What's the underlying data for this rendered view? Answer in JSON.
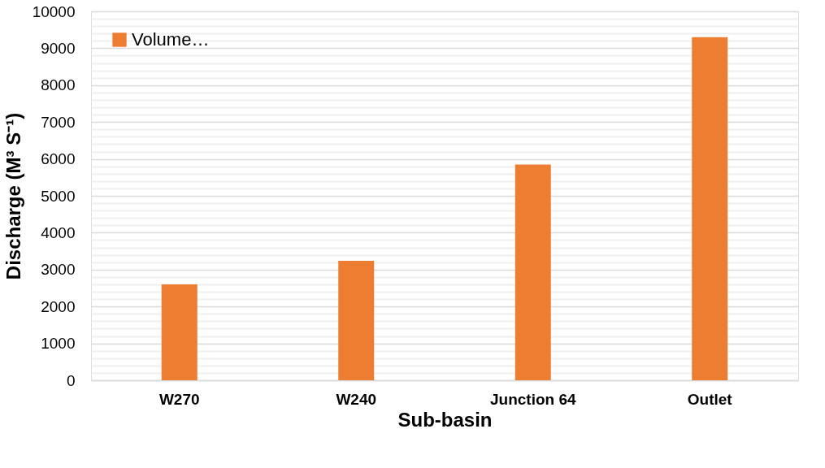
{
  "chart_data": {
    "type": "bar",
    "xlabel": "Sub-basin",
    "ylabel": "Discharge (M³ S⁻¹)",
    "categories": [
      "W270",
      "W240",
      "Junction 64",
      "Outlet"
    ],
    "series": [
      {
        "name": "Volume…",
        "color": "#ed7d31",
        "values": [
          2600,
          3240,
          5850,
          9300
        ]
      }
    ],
    "ylim": [
      0,
      10000
    ],
    "yticks": [
      0,
      {
        "value": 200,
        "label": null
      },
      {
        "value": 400,
        "label": null
      },
      {
        "value": 600,
        "label": null
      },
      {
        "value": 800,
        "label": null
      },
      1000,
      {
        "value": 1200,
        "label": null
      },
      {
        "value": 1400,
        "label": null
      },
      {
        "value": 1600,
        "label": null
      },
      {
        "value": 1800,
        "label": null
      },
      2000,
      {
        "value": 2200,
        "label": null
      },
      {
        "value": 2400,
        "label": null
      },
      {
        "value": 2600,
        "label": null
      },
      {
        "value": 2800,
        "label": null
      },
      3000,
      {
        "value": 3200,
        "label": null
      },
      {
        "value": 3400,
        "label": null
      },
      {
        "value": 3600,
        "label": null
      },
      {
        "value": 3800,
        "label": null
      },
      4000,
      {
        "value": 4200,
        "label": null
      },
      {
        "value": 4400,
        "label": null
      },
      {
        "value": 4600,
        "label": null
      },
      {
        "value": 4800,
        "label": null
      },
      5000,
      {
        "value": 5200,
        "label": null
      },
      {
        "value": 5400,
        "label": null
      },
      {
        "value": 5600,
        "label": null
      },
      {
        "value": 5800,
        "label": null
      },
      6000,
      {
        "value": 6200,
        "label": null
      },
      {
        "value": 6400,
        "label": null
      },
      {
        "value": 6600,
        "label": null
      },
      {
        "value": 6800,
        "label": null
      },
      7000,
      {
        "value": 7200,
        "label": null
      },
      {
        "value": 7400,
        "label": null
      },
      {
        "value": 7600,
        "label": null
      },
      {
        "value": 7800,
        "label": null
      },
      8000,
      {
        "value": 8200,
        "label": null
      },
      {
        "value": 8400,
        "label": null
      },
      {
        "value": 8600,
        "label": null
      },
      {
        "value": 8800,
        "label": null
      },
      9000,
      {
        "value": 9200,
        "label": null
      },
      {
        "value": 9400,
        "label": null
      },
      {
        "value": 9600,
        "label": null
      },
      {
        "value": 9800,
        "label": null
      },
      10000
    ],
    "grid": "y",
    "legend": "top left"
  }
}
